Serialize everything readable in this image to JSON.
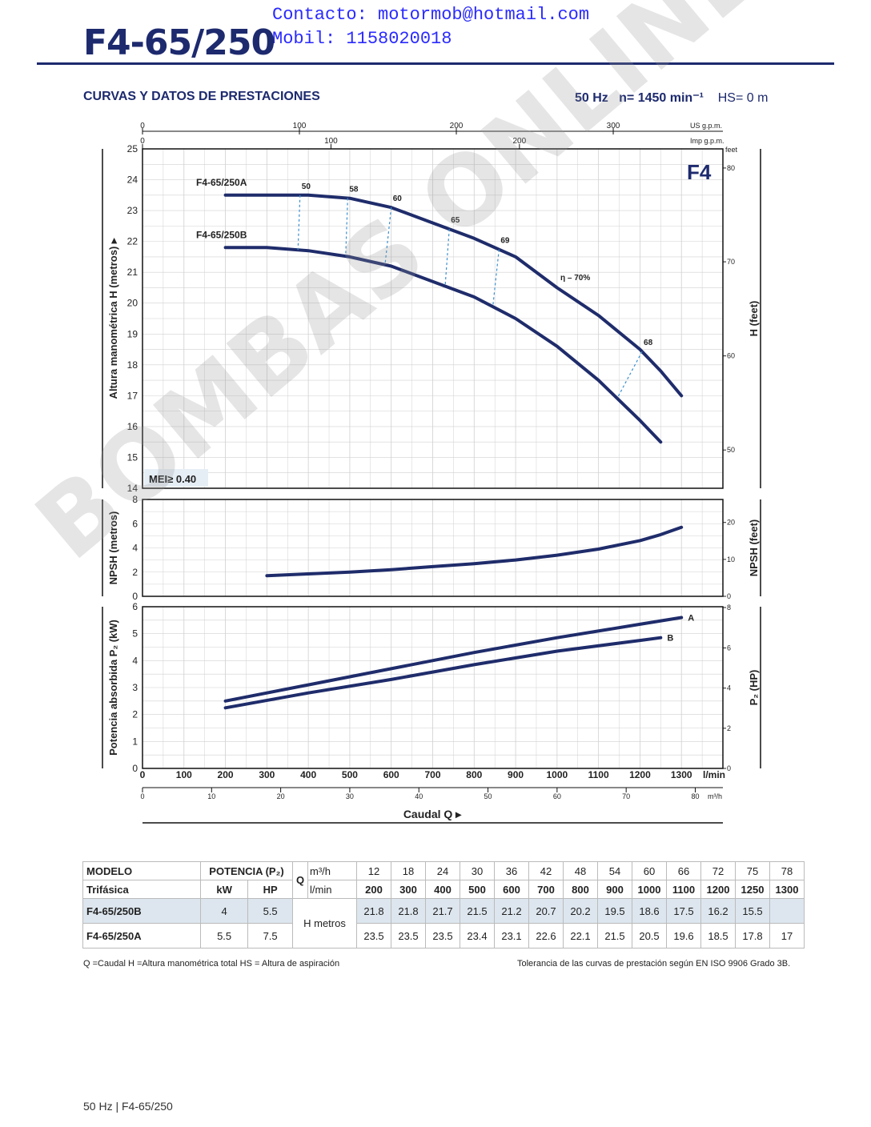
{
  "header": {
    "contact_line1": "Contacto: motormob@hotmail.com",
    "contact_line2": "Mobil: 1158020018",
    "model_title": "F4-65/250",
    "section_title": "CURVAS Y DATOS DE PRESTACIONES",
    "freq": "50 Hz",
    "speed": "n= 1450 min⁻¹",
    "hs": "HS= 0 m"
  },
  "watermark": "BOMBAS ONLINE",
  "colors": {
    "curve": "#1f2c6b",
    "efficiency_dash": "#3a8fd0",
    "grid": "#d0d0d0",
    "accent": "#1d2a6e"
  },
  "chart_data": [
    {
      "type": "line",
      "panel": "head",
      "badge": "F4",
      "mei": "MEI≥ 0.40",
      "ylabel": "Altura manométrica H  (metros)  ▸",
      "ylabel_right": "H  (feet)",
      "ylim": [
        14,
        25
      ],
      "yticks": [
        14,
        15,
        16,
        17,
        18,
        19,
        20,
        21,
        22,
        23,
        24,
        25
      ],
      "yticks_right": [
        "50",
        "60",
        "70",
        "80"
      ],
      "yticks_right_values": [
        15.24,
        18.29,
        21.34,
        24.38
      ],
      "right_unit": "feet",
      "xlim": [
        0,
        1400
      ],
      "series": [
        {
          "name": "F4-65/250A",
          "x": [
            200,
            300,
            400,
            500,
            600,
            700,
            800,
            900,
            1000,
            1100,
            1200,
            1250,
            1300
          ],
          "y": [
            23.5,
            23.5,
            23.5,
            23.4,
            23.1,
            22.6,
            22.1,
            21.5,
            20.5,
            19.6,
            18.5,
            17.8,
            17.0
          ]
        },
        {
          "name": "F4-65/250B",
          "x": [
            200,
            300,
            400,
            500,
            600,
            700,
            800,
            900,
            1000,
            1100,
            1200,
            1250
          ],
          "y": [
            21.8,
            21.8,
            21.7,
            21.5,
            21.2,
            20.7,
            20.2,
            19.5,
            18.6,
            17.5,
            16.2,
            15.5
          ]
        }
      ],
      "efficiency_labels": [
        {
          "label": "50",
          "xa": 380,
          "xb": 375
        },
        {
          "label": "58",
          "xa": 495,
          "xb": 490
        },
        {
          "label": "60",
          "xa": 600,
          "xb": 585
        },
        {
          "label": "65",
          "xa": 740,
          "xb": 730
        },
        {
          "label": "69",
          "xa": 860,
          "xb": 845
        },
        {
          "label": "68",
          "xa": 1205,
          "xb": 1145
        }
      ],
      "efficiency_note": "η – 70%"
    },
    {
      "type": "line",
      "panel": "npsh",
      "ylabel": "NPSH  (metros)",
      "ylabel_right": "NPSH  (feet)",
      "ylim": [
        0,
        8
      ],
      "yticks": [
        0,
        2,
        4,
        6,
        8
      ],
      "yticks_right": [
        "0",
        "10",
        "20"
      ],
      "yticks_right_values": [
        0,
        3.05,
        6.1
      ],
      "xlim": [
        0,
        1400
      ],
      "series": [
        {
          "name": "",
          "x": [
            300,
            400,
            500,
            600,
            700,
            800,
            900,
            1000,
            1100,
            1200,
            1250,
            1300
          ],
          "y": [
            1.7,
            1.85,
            2.0,
            2.2,
            2.45,
            2.7,
            3.0,
            3.4,
            3.9,
            4.6,
            5.1,
            5.7
          ]
        }
      ]
    },
    {
      "type": "line",
      "panel": "power",
      "ylabel": "Potencia absorbida  P₂  (kW)",
      "ylabel_right": "P₂  (HP)",
      "ylim": [
        0,
        6
      ],
      "yticks": [
        0,
        1,
        2,
        3,
        4,
        5,
        6
      ],
      "yticks_right": [
        "0",
        "2",
        "4",
        "6",
        "8"
      ],
      "yticks_right_values": [
        0,
        1.49,
        2.98,
        4.47,
        5.97
      ],
      "xlim": [
        0,
        1400
      ],
      "series": [
        {
          "name": "A",
          "x": [
            200,
            400,
            600,
            800,
            1000,
            1200,
            1300
          ],
          "y": [
            2.5,
            3.1,
            3.7,
            4.3,
            4.85,
            5.35,
            5.6
          ]
        },
        {
          "name": "B",
          "x": [
            200,
            400,
            600,
            800,
            1000,
            1200,
            1250
          ],
          "y": [
            2.25,
            2.8,
            3.3,
            3.85,
            4.35,
            4.75,
            4.85
          ]
        }
      ]
    }
  ],
  "axes": {
    "x_lmin_ticks": [
      "0",
      "100",
      "200",
      "300",
      "400",
      "500",
      "600",
      "700",
      "800",
      "900",
      "1000",
      "1100",
      "1200",
      "1300"
    ],
    "x_lmin_unit": "l/min",
    "x_m3h_ticks": [
      "0",
      "10",
      "20",
      "30",
      "40",
      "50",
      "60",
      "70",
      "80"
    ],
    "x_m3h_unit": "m³/h",
    "x_usgpm_ticks": [
      "0",
      "100",
      "200",
      "300"
    ],
    "x_usgpm_unit": "US g.p.m.",
    "x_impgpm_ticks": [
      "0",
      "100",
      "200"
    ],
    "x_impgpm_unit": "Imp g.p.m.",
    "xlabel": "Caudal  Q  ▸"
  },
  "table": {
    "h_modelo": "MODELO",
    "h_trifasica": "Trifásica",
    "h_potencia": "POTENCIA (P₂)",
    "h_kw": "kW",
    "h_hp": "HP",
    "h_q": "Q",
    "h_m3h": "m³/h",
    "h_lmin": "l/min",
    "h_metros": "H  metros",
    "m3h": [
      "12",
      "18",
      "24",
      "30",
      "36",
      "42",
      "48",
      "54",
      "60",
      "66",
      "72",
      "75",
      "78"
    ],
    "lmin": [
      "200",
      "300",
      "400",
      "500",
      "600",
      "700",
      "800",
      "900",
      "1000",
      "1100",
      "1200",
      "1250",
      "1300"
    ],
    "rows": [
      {
        "model": "F4-65/250B",
        "kw": "4",
        "hp": "5.5",
        "h": [
          "21.8",
          "21.8",
          "21.7",
          "21.5",
          "21.2",
          "20.7",
          "20.2",
          "19.5",
          "18.6",
          "17.5",
          "16.2",
          "15.5",
          ""
        ]
      },
      {
        "model": "F4-65/250A",
        "kw": "5.5",
        "hp": "7.5",
        "h": [
          "23.5",
          "23.5",
          "23.5",
          "23.4",
          "23.1",
          "22.6",
          "22.1",
          "21.5",
          "20.5",
          "19.6",
          "18.5",
          "17.8",
          "17"
        ]
      }
    ]
  },
  "footer": {
    "legend": "Q =Caudal   H =Altura manométrica total   HS = Altura de aspiración",
    "tolerance": "Tolerancia de las curvas de prestación según EN ISO 9906 Grado 3B.",
    "page_label": "50 Hz   |   F4-65/250"
  }
}
